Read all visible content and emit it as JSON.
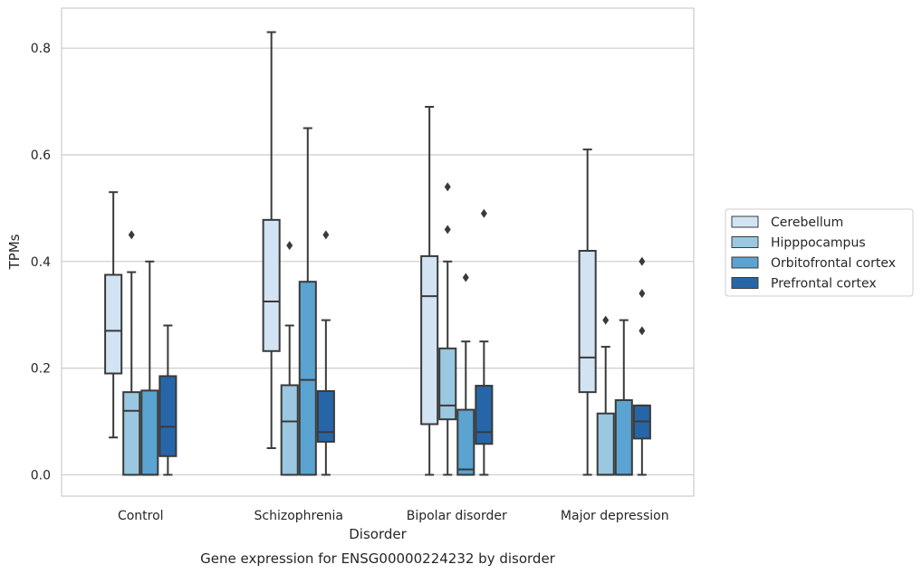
{
  "chart_data": {
    "type": "boxplot",
    "title": "",
    "caption": "Gene expression for ENSG00000224232 by disorder",
    "xlabel": "Disorder",
    "ylabel": "TPMs",
    "categories": [
      "Control",
      "Schizophrenia",
      "Bipolar disorder",
      "Major depression"
    ],
    "ylim": [
      -0.04,
      0.875
    ],
    "yticks": [
      0.0,
      0.2,
      0.4,
      0.6,
      0.8
    ],
    "ytick_labels": [
      "0.0",
      "0.2",
      "0.4",
      "0.6",
      "0.8"
    ],
    "grid": "horizontal",
    "legend_position": "right",
    "series": [
      {
        "name": "Cerebellum",
        "color": "#d2e3f3",
        "boxes": [
          {
            "whislo": 0.07,
            "q1": 0.19,
            "med": 0.27,
            "q3": 0.375,
            "whishi": 0.53,
            "fliers": []
          },
          {
            "whislo": 0.05,
            "q1": 0.232,
            "med": 0.325,
            "q3": 0.478,
            "whishi": 0.83,
            "fliers": []
          },
          {
            "whislo": 0.0,
            "q1": 0.095,
            "med": 0.335,
            "q3": 0.41,
            "whishi": 0.69,
            "fliers": []
          },
          {
            "whislo": 0.0,
            "q1": 0.155,
            "med": 0.22,
            "q3": 0.42,
            "whishi": 0.61,
            "fliers": []
          }
        ]
      },
      {
        "name": "Hipppocampus",
        "color": "#9ac8e0",
        "boxes": [
          {
            "whislo": 0.0,
            "q1": 0.0,
            "med": 0.12,
            "q3": 0.155,
            "whishi": 0.38,
            "fliers": [
              0.45
            ]
          },
          {
            "whislo": 0.0,
            "q1": 0.0,
            "med": 0.1,
            "q3": 0.168,
            "whishi": 0.28,
            "fliers": [
              0.43
            ]
          },
          {
            "whislo": 0.0,
            "q1": 0.104,
            "med": 0.13,
            "q3": 0.237,
            "whishi": 0.4,
            "fliers": [
              0.46,
              0.54
            ]
          },
          {
            "whislo": 0.0,
            "q1": 0.0,
            "med": 0.0,
            "q3": 0.115,
            "whishi": 0.24,
            "fliers": [
              0.29
            ]
          }
        ]
      },
      {
        "name": "Orbitofrontal cortex",
        "color": "#5ba3d0",
        "boxes": [
          {
            "whislo": 0.0,
            "q1": 0.0,
            "med": 0.0,
            "q3": 0.158,
            "whishi": 0.4,
            "fliers": []
          },
          {
            "whislo": 0.0,
            "q1": 0.0,
            "med": 0.178,
            "q3": 0.362,
            "whishi": 0.65,
            "fliers": []
          },
          {
            "whislo": 0.0,
            "q1": 0.0,
            "med": 0.01,
            "q3": 0.122,
            "whishi": 0.25,
            "fliers": [
              0.37
            ]
          },
          {
            "whislo": 0.0,
            "q1": 0.0,
            "med": 0.0,
            "q3": 0.14,
            "whishi": 0.29,
            "fliers": []
          }
        ]
      },
      {
        "name": "Prefrontal cortex",
        "color": "#2666a8",
        "boxes": [
          {
            "whislo": 0.0,
            "q1": 0.035,
            "med": 0.09,
            "q3": 0.185,
            "whishi": 0.28,
            "fliers": []
          },
          {
            "whislo": 0.0,
            "q1": 0.062,
            "med": 0.08,
            "q3": 0.157,
            "whishi": 0.29,
            "fliers": [
              0.45
            ]
          },
          {
            "whislo": 0.0,
            "q1": 0.058,
            "med": 0.08,
            "q3": 0.167,
            "whishi": 0.25,
            "fliers": [
              0.49
            ]
          },
          {
            "whislo": 0.0,
            "q1": 0.068,
            "med": 0.1,
            "q3": 0.13,
            "whishi": 0.13,
            "fliers": [
              0.27,
              0.34,
              0.4
            ]
          }
        ]
      }
    ]
  }
}
